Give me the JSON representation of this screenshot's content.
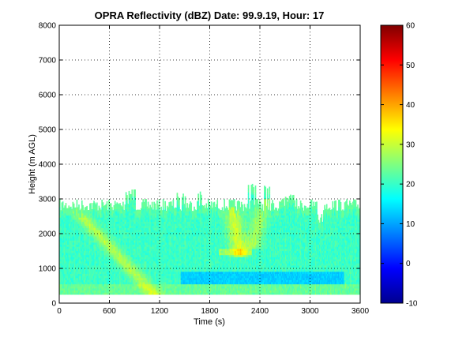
{
  "chart_data": {
    "type": "heatmap",
    "title": "OPRA Reflectivity (dBZ)  Date: 99.9.19, Hour: 17",
    "xlabel": "Time (s)",
    "ylabel": "Height (m AGL)",
    "xlim": [
      0,
      3600
    ],
    "ylim": [
      0,
      8000
    ],
    "xticks": [
      "0",
      "600",
      "1200",
      "1800",
      "2400",
      "3000",
      "3600"
    ],
    "yticks": [
      "0",
      "1000",
      "2000",
      "3000",
      "4000",
      "5000",
      "6000",
      "7000",
      "8000"
    ],
    "grid": true,
    "colormap": "jet",
    "colorbar": {
      "range": [
        -10,
        60
      ],
      "ticks": [
        "-10",
        "0",
        "10",
        "20",
        "30",
        "40",
        "50",
        "60"
      ]
    },
    "data_summary": {
      "echo_base_m": 250,
      "typical_echo_top_m": 3000,
      "max_echo_top_m": 3450,
      "background_dbz": 20,
      "enhanced_streaks": [
        {
          "start_s": 100,
          "start_height_m": 2900,
          "end_s": 1100,
          "end_height_m": 300,
          "dbz": 28
        },
        {
          "start_s": 2050,
          "start_height_m": 2900,
          "end_s": 2150,
          "end_height_m": 1400,
          "dbz": 30
        },
        {
          "start_s": 2450,
          "start_height_m": 2900,
          "end_s": 2300,
          "end_height_m": 1600,
          "dbz": 27
        }
      ],
      "weak_layer": {
        "start_s": 1450,
        "end_s": 3400,
        "height_m": 700,
        "dbz": 13
      }
    }
  }
}
